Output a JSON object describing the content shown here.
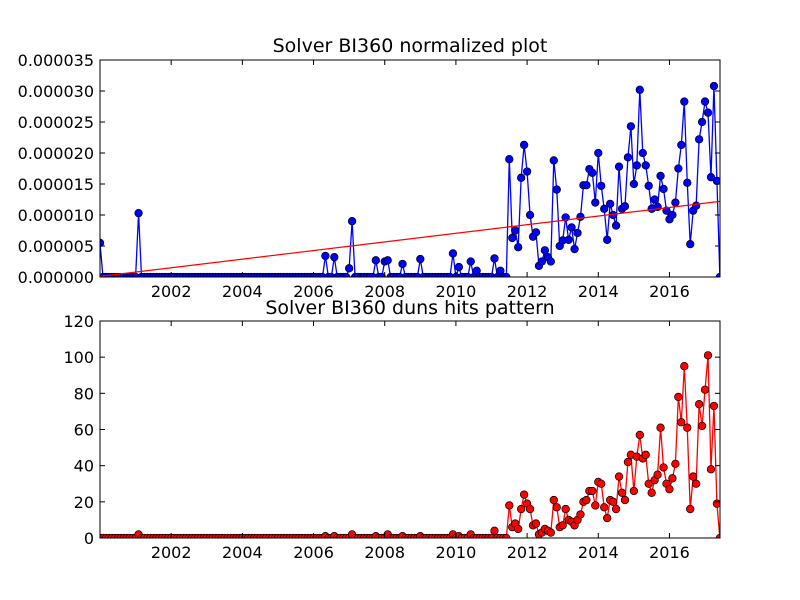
{
  "chart_data": [
    {
      "type": "line",
      "title": "Solver BI360 normalized plot",
      "xlabel": "",
      "ylabel": "",
      "xlim": [
        2000.0,
        2017.42
      ],
      "ylim": [
        0,
        3.5e-05
      ],
      "x_ticks": [
        2002,
        2004,
        2006,
        2008,
        2010,
        2012,
        2014,
        2016
      ],
      "x_tick_labels": [
        "2002",
        "2004",
        "2006",
        "2008",
        "2010",
        "2012",
        "2014",
        "2016"
      ],
      "y_ticks": [
        0,
        5e-06,
        1e-05,
        1.5e-05,
        2e-05,
        2.5e-05,
        3e-05,
        3.5e-05
      ],
      "y_tick_labels": [
        "0.000000",
        "0.000005",
        "0.000010",
        "0.000015",
        "0.000020",
        "0.000025",
        "0.000030",
        "0.000035"
      ],
      "grid": false,
      "series": [
        {
          "color": "#0000ff",
          "marker": "circle",
          "points": [
            [
              2000.0,
              5.5e-06
            ],
            [
              2001.08,
              1.03e-05
            ],
            [
              2006.33,
              3.4e-06
            ],
            [
              2006.58,
              3.2e-06
            ],
            [
              2007.0,
              1.4e-06
            ],
            [
              2007.08,
              9e-06
            ],
            [
              2007.75,
              2.7e-06
            ],
            [
              2008.0,
              2.5e-06
            ],
            [
              2008.08,
              2.7e-06
            ],
            [
              2008.5,
              2.1e-06
            ],
            [
              2009.0,
              2.9e-06
            ],
            [
              2009.92,
              3.8e-06
            ],
            [
              2010.08,
              1.6e-06
            ],
            [
              2010.42,
              2.5e-06
            ],
            [
              2010.58,
              1e-06
            ],
            [
              2011.08,
              3e-06
            ],
            [
              2011.25,
              1e-06
            ],
            [
              2011.5,
              1.9e-05
            ],
            [
              2011.58,
              6.3e-06
            ],
            [
              2011.67,
              7.5e-06
            ],
            [
              2011.75,
              4.8e-06
            ],
            [
              2011.83,
              1.6e-05
            ],
            [
              2011.92,
              2.13e-05
            ],
            [
              2012.0,
              1.7e-05
            ],
            [
              2012.08,
              1e-05
            ],
            [
              2012.17,
              6.5e-06
            ],
            [
              2012.25,
              7.2e-06
            ],
            [
              2012.33,
              1.8e-06
            ],
            [
              2012.42,
              2.5e-06
            ],
            [
              2012.5,
              4.3e-06
            ],
            [
              2012.58,
              3.2e-06
            ],
            [
              2012.67,
              2.5e-06
            ],
            [
              2012.75,
              1.88e-05
            ],
            [
              2012.83,
              1.41e-05
            ],
            [
              2012.92,
              5e-06
            ],
            [
              2013.0,
              5.9e-06
            ],
            [
              2013.08,
              9.6e-06
            ],
            [
              2013.17,
              6e-06
            ],
            [
              2013.25,
              8e-06
            ],
            [
              2013.33,
              4.5e-06
            ],
            [
              2013.42,
              7.1e-06
            ],
            [
              2013.5,
              9.7e-06
            ],
            [
              2013.58,
              1.48e-05
            ],
            [
              2013.67,
              1.48e-05
            ],
            [
              2013.75,
              1.74e-05
            ],
            [
              2013.83,
              1.68e-05
            ],
            [
              2013.92,
              1.2e-05
            ],
            [
              2014.0,
              2e-05
            ],
            [
              2014.08,
              1.47e-05
            ],
            [
              2014.17,
              1.1e-05
            ],
            [
              2014.25,
              6e-06
            ],
            [
              2014.33,
              1.18e-05
            ],
            [
              2014.42,
              1e-05
            ],
            [
              2014.5,
              8.3e-06
            ],
            [
              2014.58,
              1.78e-05
            ],
            [
              2014.67,
              1.1e-05
            ],
            [
              2014.75,
              1.14e-05
            ],
            [
              2014.83,
              1.93e-05
            ],
            [
              2014.92,
              2.43e-05
            ],
            [
              2015.0,
              1.5e-05
            ],
            [
              2015.08,
              1.8e-05
            ],
            [
              2015.17,
              3.02e-05
            ],
            [
              2015.25,
              2e-05
            ],
            [
              2015.33,
              1.8e-05
            ],
            [
              2015.42,
              1.47e-05
            ],
            [
              2015.5,
              1.1e-05
            ],
            [
              2015.58,
              1.25e-05
            ],
            [
              2015.67,
              1.13e-05
            ],
            [
              2015.75,
              1.63e-05
            ],
            [
              2015.83,
              1.42e-05
            ],
            [
              2015.92,
              1.07e-05
            ],
            [
              2016.0,
              9.3e-06
            ],
            [
              2016.08,
              1e-05
            ],
            [
              2016.17,
              1.2e-05
            ],
            [
              2016.25,
              1.75e-05
            ],
            [
              2016.33,
              2.13e-05
            ],
            [
              2016.42,
              2.83e-05
            ],
            [
              2016.5,
              1.52e-05
            ],
            [
              2016.58,
              5.3e-06
            ],
            [
              2016.67,
              1.07e-05
            ],
            [
              2016.75,
              1.15e-05
            ],
            [
              2016.83,
              2.22e-05
            ],
            [
              2016.92,
              2.5e-05
            ],
            [
              2017.0,
              2.83e-05
            ],
            [
              2017.08,
              2.65e-05
            ],
            [
              2017.17,
              1.61e-05
            ],
            [
              2017.25,
              3.08e-05
            ],
            [
              2017.33,
              1.55e-05
            ]
          ]
        },
        {
          "color": "#ff0000",
          "marker": "none",
          "points": [
            [
              2000.0,
              1e-07
            ],
            [
              2017.42,
              1.22e-05
            ]
          ]
        }
      ]
    },
    {
      "type": "line",
      "title": "Solver BI360 duns hits pattern",
      "xlabel": "",
      "ylabel": "",
      "xlim": [
        2000.0,
        2017.42
      ],
      "ylim": [
        0,
        120
      ],
      "x_ticks": [
        2002,
        2004,
        2006,
        2008,
        2010,
        2012,
        2014,
        2016
      ],
      "x_tick_labels": [
        "2002",
        "2004",
        "2006",
        "2008",
        "2010",
        "2012",
        "2014",
        "2016"
      ],
      "y_ticks": [
        0,
        20,
        40,
        60,
        80,
        100,
        120
      ],
      "y_tick_labels": [
        "0",
        "20",
        "40",
        "60",
        "80",
        "100",
        "120"
      ],
      "grid": false,
      "series": [
        {
          "color": "#ff0000",
          "marker": "circle",
          "points": [
            [
              2001.08,
              2
            ],
            [
              2006.33,
              1
            ],
            [
              2006.58,
              1
            ],
            [
              2007.08,
              2
            ],
            [
              2007.75,
              1
            ],
            [
              2008.08,
              2
            ],
            [
              2008.5,
              1
            ],
            [
              2009.0,
              1
            ],
            [
              2009.92,
              2
            ],
            [
              2010.08,
              1
            ],
            [
              2010.42,
              2
            ],
            [
              2011.08,
              4
            ],
            [
              2011.5,
              18
            ],
            [
              2011.58,
              6
            ],
            [
              2011.67,
              8
            ],
            [
              2011.75,
              5
            ],
            [
              2011.83,
              16
            ],
            [
              2011.92,
              24
            ],
            [
              2012.0,
              19
            ],
            [
              2012.08,
              16
            ],
            [
              2012.17,
              7
            ],
            [
              2012.25,
              8
            ],
            [
              2012.33,
              2
            ],
            [
              2012.42,
              3
            ],
            [
              2012.5,
              5
            ],
            [
              2012.58,
              4
            ],
            [
              2012.67,
              3
            ],
            [
              2012.75,
              21
            ],
            [
              2012.83,
              17
            ],
            [
              2012.92,
              6
            ],
            [
              2013.0,
              7
            ],
            [
              2013.08,
              16
            ],
            [
              2013.17,
              10
            ],
            [
              2013.25,
              9
            ],
            [
              2013.33,
              7
            ],
            [
              2013.42,
              10
            ],
            [
              2013.5,
              13
            ],
            [
              2013.58,
              20
            ],
            [
              2013.67,
              21
            ],
            [
              2013.75,
              26
            ],
            [
              2013.83,
              26
            ],
            [
              2013.92,
              18
            ],
            [
              2014.0,
              31
            ],
            [
              2014.08,
              30
            ],
            [
              2014.17,
              17
            ],
            [
              2014.25,
              11
            ],
            [
              2014.33,
              21
            ],
            [
              2014.42,
              20
            ],
            [
              2014.5,
              16
            ],
            [
              2014.58,
              34
            ],
            [
              2014.67,
              25
            ],
            [
              2014.75,
              21
            ],
            [
              2014.83,
              42
            ],
            [
              2014.92,
              46
            ],
            [
              2015.0,
              26
            ],
            [
              2015.08,
              45
            ],
            [
              2015.17,
              57
            ],
            [
              2015.25,
              44
            ],
            [
              2015.33,
              46
            ],
            [
              2015.42,
              30
            ],
            [
              2015.5,
              25
            ],
            [
              2015.58,
              32
            ],
            [
              2015.67,
              35
            ],
            [
              2015.75,
              61
            ],
            [
              2015.83,
              39
            ],
            [
              2015.92,
              30
            ],
            [
              2016.0,
              27
            ],
            [
              2016.08,
              33
            ],
            [
              2016.17,
              41
            ],
            [
              2016.25,
              78
            ],
            [
              2016.33,
              64
            ],
            [
              2016.42,
              95
            ],
            [
              2016.5,
              61
            ],
            [
              2016.58,
              16
            ],
            [
              2016.67,
              34
            ],
            [
              2016.75,
              30
            ],
            [
              2016.83,
              74
            ],
            [
              2016.92,
              62
            ],
            [
              2017.0,
              82
            ],
            [
              2017.08,
              101
            ],
            [
              2017.17,
              38
            ],
            [
              2017.25,
              73
            ],
            [
              2017.33,
              19
            ]
          ]
        }
      ]
    }
  ]
}
